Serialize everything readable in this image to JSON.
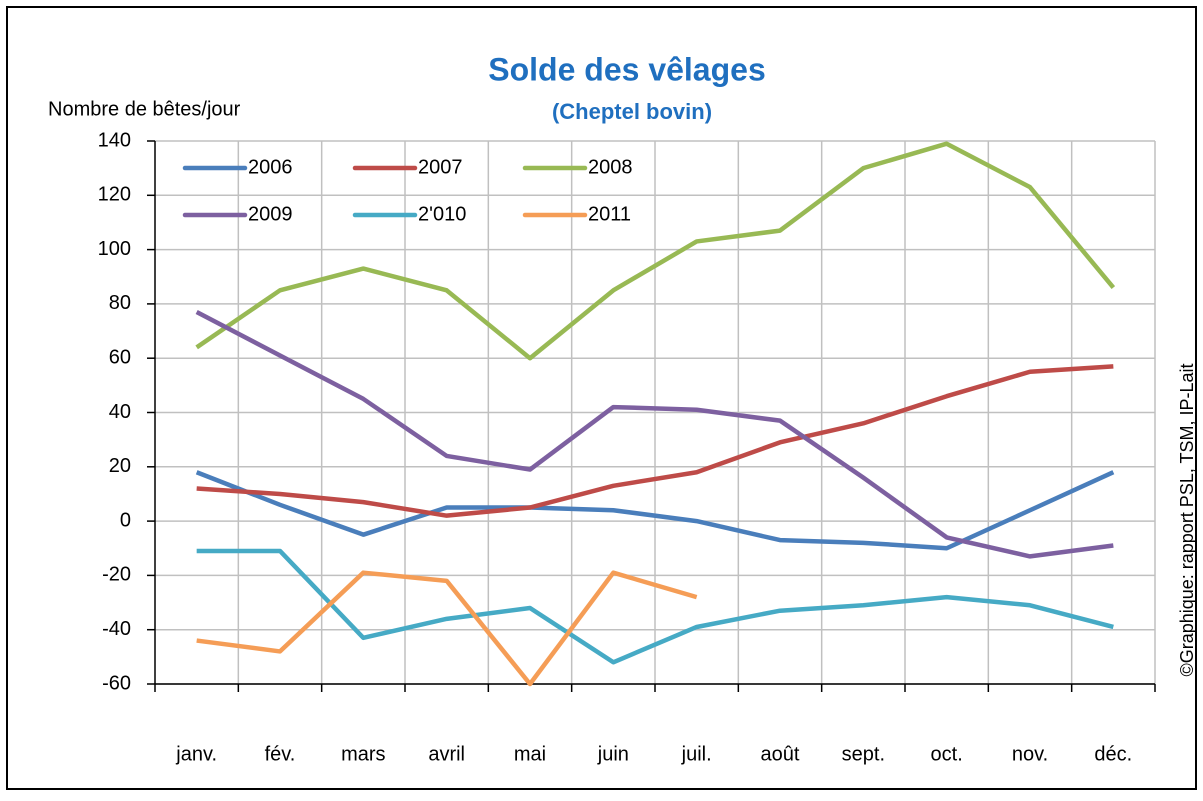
{
  "chart_data": {
    "type": "line",
    "title": "Solde des vêlages",
    "subtitle": "(Cheptel bovin)",
    "y_label": "Nombre de bêtes/jour",
    "source": "©Graphique: rapport PSL, TSM, IP-Lait",
    "categories": [
      "janv.",
      "fév.",
      "mars",
      "avril",
      "mai",
      "juin",
      "juil.",
      "août",
      "sept.",
      "oct.",
      "nov.",
      "déc."
    ],
    "series": [
      {
        "name": "2006",
        "color": "#4a7ebb",
        "values": [
          18,
          6,
          -5,
          5,
          5,
          4,
          0,
          -7,
          -8,
          -10,
          4,
          18
        ]
      },
      {
        "name": "2007",
        "color": "#be4b48",
        "values": [
          12,
          10,
          7,
          2,
          5,
          13,
          18,
          29,
          36,
          46,
          55,
          57
        ]
      },
      {
        "name": "2008",
        "color": "#98b954",
        "values": [
          64,
          85,
          93,
          85,
          60,
          85,
          103,
          107,
          130,
          139,
          123,
          86
        ]
      },
      {
        "name": "2009",
        "color": "#7d60a0",
        "values": [
          77,
          61,
          45,
          24,
          19,
          42,
          41,
          37,
          16,
          -6,
          -13,
          -9
        ]
      },
      {
        "name": "2'010",
        "color": "#46aac5",
        "values": [
          -11,
          -11,
          -43,
          -36,
          -32,
          -52,
          -39,
          -33,
          -31,
          -28,
          -31,
          -39
        ]
      },
      {
        "name": "2011",
        "color": "#f59d56",
        "values": [
          -44,
          -48,
          -19,
          -22,
          -60,
          -19,
          -28,
          null,
          null,
          null,
          null,
          null
        ]
      }
    ],
    "ylim": [
      -60,
      140
    ],
    "yticks": [
      -60,
      -40,
      -20,
      0,
      20,
      40,
      60,
      80,
      100,
      120,
      140
    ],
    "grid": true,
    "legend": "top-left"
  }
}
